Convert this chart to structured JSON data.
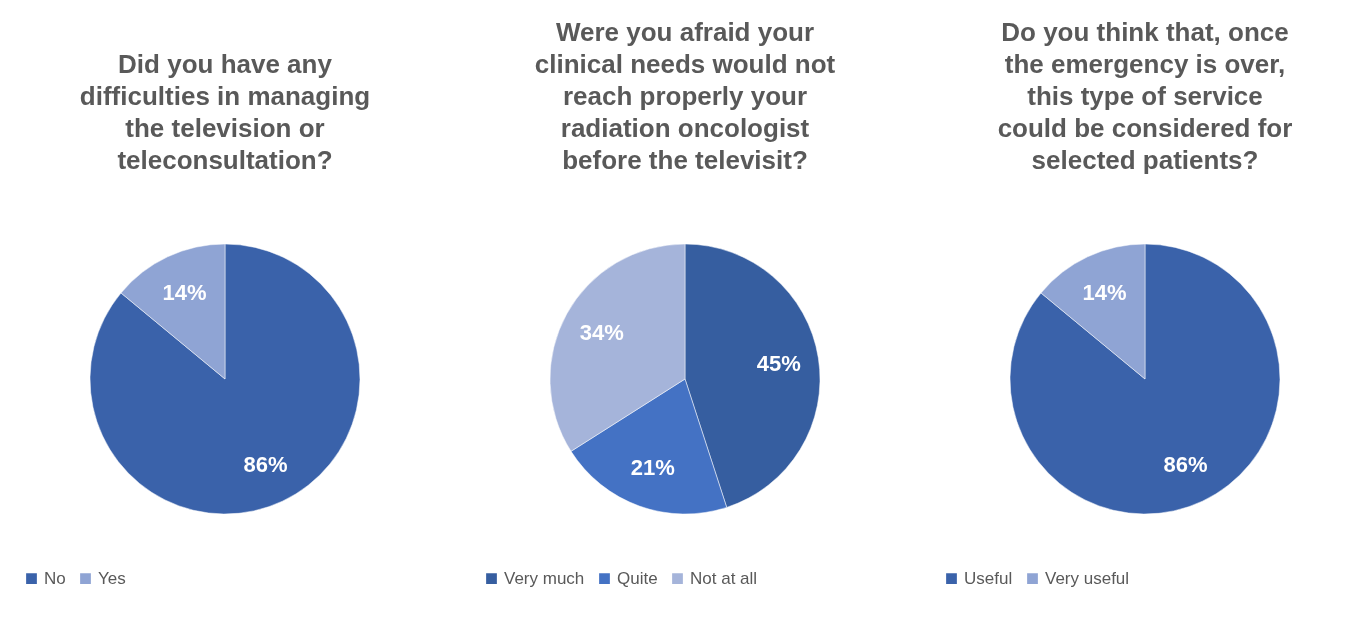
{
  "chart_data": [
    {
      "type": "pie",
      "title": "Did you have any difficulties in managing the television or teleconsultation?",
      "categories": [
        "No",
        "Yes"
      ],
      "values": [
        86,
        14
      ],
      "colors": [
        "#3a62aa",
        "#8fa4d4"
      ],
      "value_labels": [
        "86%",
        "14%"
      ],
      "legend": "bottom"
    },
    {
      "type": "pie",
      "title": "Were you afraid your clinical needs would not reach properly your radiation oncologist before the televisit?",
      "categories": [
        "Very much",
        "Quite",
        "Not at all"
      ],
      "values": [
        45,
        21,
        34
      ],
      "colors": [
        "#365ea0",
        "#4472c4",
        "#a5b4da"
      ],
      "value_labels": [
        "45%",
        "21%",
        "34%"
      ],
      "legend": "bottom"
    },
    {
      "type": "pie",
      "title": "Do you think that, once the emergency is over, this type of service could be considered for selected patients?",
      "categories": [
        "Useful",
        "Very useful"
      ],
      "values": [
        86,
        14
      ],
      "colors": [
        "#3a62aa",
        "#8fa4d4"
      ],
      "value_labels": [
        "86%",
        "14%"
      ],
      "legend": "bottom"
    }
  ]
}
